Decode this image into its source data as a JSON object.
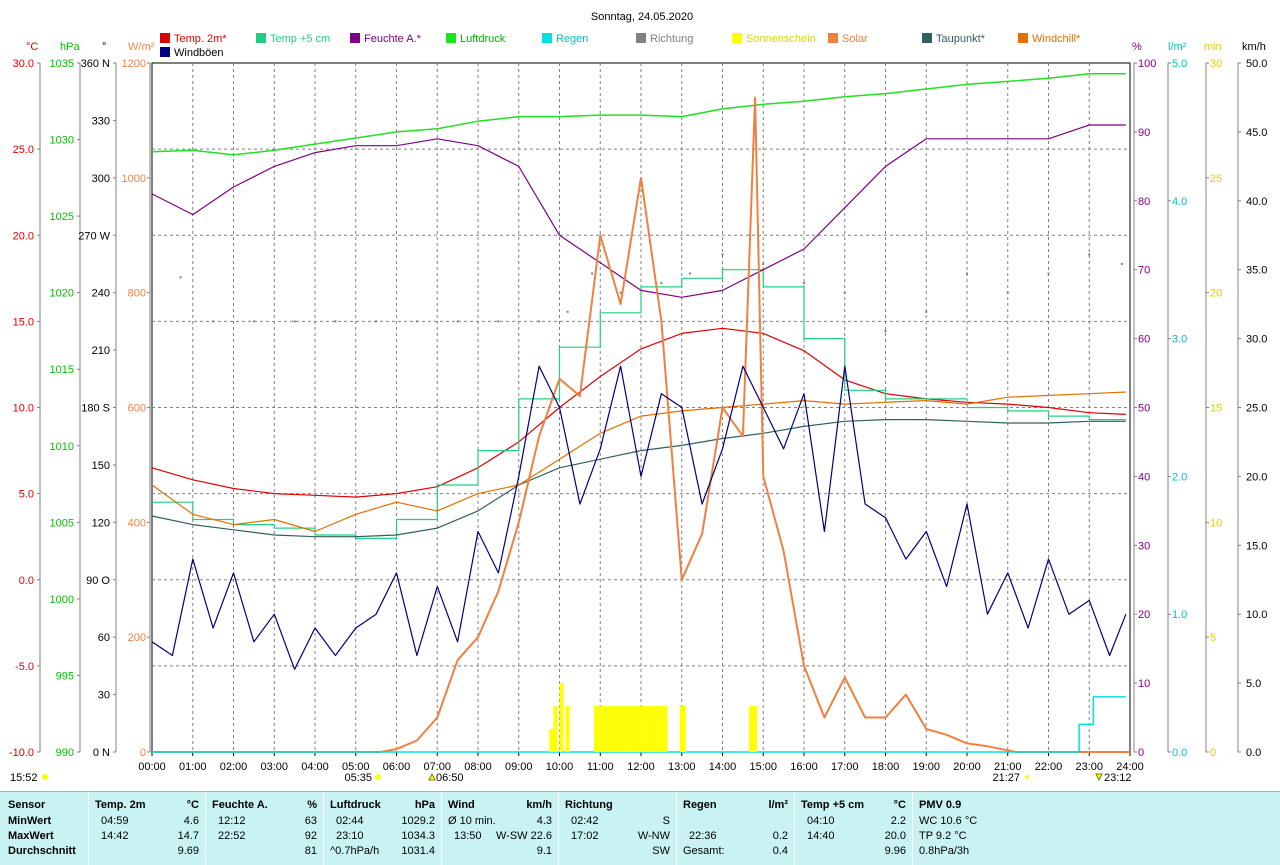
{
  "chart_data": {
    "type": "line",
    "title": "Sonntag, 24.05.2020",
    "x_ticks": [
      "00:00",
      "01:00",
      "02:00",
      "03:00",
      "04:00",
      "05:00",
      "06:00",
      "07:00",
      "08:00",
      "09:00",
      "10:00",
      "11:00",
      "12:00",
      "13:00",
      "14:00",
      "15:00",
      "16:00",
      "17:00",
      "18:00",
      "19:00",
      "20:00",
      "21:00",
      "22:00",
      "23:00",
      "24:00"
    ],
    "axes": {
      "temp": {
        "unit": "°C",
        "min": -10,
        "max": 30,
        "ticks": [
          "30.0",
          "25.0",
          "20.0",
          "15.0",
          "10.0",
          "5.0",
          "0.0",
          "-5.0",
          "-10.0"
        ],
        "color": "#e00000"
      },
      "press": {
        "unit": "hPa",
        "min": 990,
        "max": 1035,
        "ticks": [
          "1035",
          "1030",
          "1025",
          "1020",
          "1015",
          "1010",
          "1005",
          "1000",
          "995",
          "990"
        ],
        "color": "#00c000"
      },
      "dir": {
        "unit": "°",
        "min": 0,
        "max": 360,
        "ticks": [
          "360 N",
          "330",
          "300",
          "270 W",
          "240",
          "210",
          "180 S",
          "150",
          "120",
          "90 O",
          "60",
          "30",
          "0 N"
        ],
        "color": "#000000"
      },
      "solar": {
        "unit": "W/m²",
        "min": 0,
        "max": 1200,
        "ticks": [
          "1200",
          "1000",
          "800",
          "600",
          "400",
          "200",
          "0"
        ],
        "color": "#f08040"
      },
      "hum": {
        "unit": "%",
        "min": 0,
        "max": 100,
        "ticks": [
          "100",
          "90",
          "80",
          "70",
          "60",
          "50",
          "40",
          "30",
          "20",
          "10",
          "0"
        ],
        "color": "#800080"
      },
      "rain": {
        "unit": "l/m²",
        "min": 0,
        "max": 5,
        "ticks": [
          "5.0",
          "4.0",
          "3.0",
          "2.0",
          "1.0",
          "0.0"
        ],
        "color": "#00c0c0"
      },
      "sun": {
        "unit": "min",
        "min": 0,
        "max": 30,
        "ticks": [
          "30",
          "25",
          "20",
          "15",
          "10",
          "5",
          "0"
        ],
        "color": "#e0e000"
      },
      "wind": {
        "unit": "km/h",
        "min": 0,
        "max": 50,
        "ticks": [
          "50.0",
          "45.0",
          "40.0",
          "35.0",
          "30.0",
          "25.0",
          "20.0",
          "15.0",
          "10.0",
          "5.0",
          "0.0"
        ],
        "color": "#000000"
      }
    },
    "legend": [
      {
        "name": "Temp. 2m*",
        "color": "#e00000"
      },
      {
        "name": "Temp +5 cm",
        "color": "#20d080"
      },
      {
        "name": "Feuchte A.*",
        "color": "#800080"
      },
      {
        "name": "Luftdruck",
        "color": "#20e020"
      },
      {
        "name": "Regen",
        "color": "#00e0e0"
      },
      {
        "name": "Richtung",
        "color": "#808080"
      },
      {
        "name": "Sonnenschein",
        "color": "#ffff00"
      },
      {
        "name": "Solar",
        "color": "#f08040"
      },
      {
        "name": "Taupunkt*",
        "color": "#306060"
      },
      {
        "name": "Windchill*",
        "color": "#e07000"
      },
      {
        "name": "Windböen",
        "color": "#000080"
      }
    ],
    "series": [
      {
        "name": "Temp. 2m*",
        "axis": "temp",
        "x": [
          0,
          1,
          2,
          3,
          4,
          5,
          6,
          7,
          8,
          9,
          10,
          11,
          12,
          13,
          14,
          15,
          16,
          17,
          18,
          19,
          20,
          21,
          22,
          23,
          23.9
        ],
        "y": [
          6.5,
          5.8,
          5.3,
          5.0,
          4.9,
          4.8,
          5.0,
          5.4,
          6.5,
          8.0,
          10.0,
          11.8,
          13.4,
          14.3,
          14.6,
          14.3,
          13.3,
          11.6,
          10.8,
          10.5,
          10.3,
          10.2,
          10.0,
          9.7,
          9.6
        ]
      },
      {
        "name": "Temp +5 cm",
        "axis": "temp",
        "x": [
          0,
          1,
          2,
          3,
          4,
          5,
          6,
          7,
          8,
          9,
          10,
          11,
          12,
          13,
          14,
          15,
          16,
          17,
          18,
          19,
          20,
          21,
          22,
          23,
          23.9
        ],
        "y": [
          4.5,
          3.5,
          3.2,
          3.0,
          2.6,
          2.4,
          3.5,
          5.5,
          7.5,
          10.5,
          13.5,
          15.5,
          17.0,
          17.5,
          18.0,
          17.0,
          14.0,
          11.0,
          10.5,
          10.5,
          10.0,
          9.8,
          9.5,
          9.3,
          9.3
        ]
      },
      {
        "name": "Feuchte A.*",
        "axis": "hum",
        "x": [
          0,
          1,
          2,
          3,
          4,
          5,
          6,
          7,
          8,
          9,
          10,
          11,
          12,
          13,
          14,
          15,
          16,
          17,
          18,
          19,
          20,
          21,
          22,
          23,
          23.9
        ],
        "y": [
          81,
          78,
          82,
          85,
          87,
          88,
          88,
          89,
          88,
          85,
          75,
          71,
          67,
          66,
          67,
          70,
          73,
          79,
          85,
          89,
          89,
          89,
          89,
          91,
          91
        ]
      },
      {
        "name": "Luftdruck",
        "axis": "press",
        "x": [
          0,
          1,
          2,
          3,
          4,
          5,
          6,
          7,
          8,
          9,
          10,
          11,
          12,
          13,
          14,
          15,
          16,
          17,
          18,
          19,
          20,
          21,
          22,
          23,
          23.9
        ],
        "y": [
          1029.2,
          1029.3,
          1029.0,
          1029.3,
          1029.7,
          1030.1,
          1030.5,
          1030.7,
          1031.2,
          1031.5,
          1031.5,
          1031.6,
          1031.6,
          1031.5,
          1032.0,
          1032.3,
          1032.5,
          1032.8,
          1033.0,
          1033.3,
          1033.6,
          1033.8,
          1034.0,
          1034.3,
          1034.3
        ]
      },
      {
        "name": "Taupunkt*",
        "axis": "temp",
        "x": [
          0,
          1,
          2,
          3,
          4,
          5,
          6,
          7,
          8,
          9,
          10,
          11,
          12,
          13,
          14,
          15,
          16,
          17,
          18,
          19,
          20,
          21,
          22,
          23,
          23.9
        ],
        "y": [
          3.7,
          3.2,
          2.9,
          2.6,
          2.5,
          2.5,
          2.6,
          3.0,
          4.0,
          5.5,
          6.5,
          7.0,
          7.5,
          7.8,
          8.2,
          8.5,
          8.9,
          9.2,
          9.3,
          9.3,
          9.2,
          9.1,
          9.1,
          9.2,
          9.2
        ]
      },
      {
        "name": "Windchill*",
        "axis": "temp",
        "x": [
          0,
          1,
          2,
          3,
          4,
          5,
          6,
          7,
          8,
          9,
          10,
          11,
          12,
          13,
          14,
          15,
          16,
          17,
          18,
          19,
          20,
          21,
          22,
          23,
          23.9
        ],
        "y": [
          5.5,
          3.8,
          3.2,
          3.5,
          2.8,
          3.8,
          4.5,
          4.0,
          5.0,
          5.5,
          7.0,
          8.5,
          9.5,
          9.8,
          10.0,
          10.2,
          10.4,
          10.2,
          10.3,
          10.4,
          10.2,
          10.6,
          10.7,
          10.8,
          10.9
        ]
      },
      {
        "name": "Solar",
        "axis": "solar",
        "x": [
          0,
          5.6,
          6,
          6.5,
          7,
          7.5,
          8,
          8.5,
          9,
          9.5,
          10,
          10.5,
          11,
          11.5,
          12,
          12.5,
          13,
          13.5,
          14,
          14.5,
          14.8,
          15,
          15.5,
          16,
          16.5,
          17,
          17.5,
          18,
          18.5,
          19,
          19.5,
          20,
          20.5,
          21,
          21.2,
          24
        ],
        "y": [
          0,
          0,
          5,
          20,
          60,
          160,
          200,
          280,
          400,
          550,
          650,
          620,
          900,
          780,
          1000,
          750,
          300,
          380,
          600,
          550,
          1140,
          480,
          350,
          150,
          60,
          130,
          60,
          60,
          100,
          40,
          30,
          15,
          10,
          3,
          0,
          0
        ]
      },
      {
        "name": "Windböen",
        "axis": "wind",
        "x": [
          0,
          0.5,
          1,
          1.5,
          2,
          2.5,
          3,
          3.5,
          4,
          4.5,
          5,
          5.5,
          6,
          6.5,
          7,
          7.5,
          8,
          8.5,
          9,
          9.5,
          10,
          10.5,
          11,
          11.5,
          12,
          12.5,
          13,
          13.5,
          14,
          14.5,
          15,
          15.5,
          16,
          16.5,
          17,
          17.5,
          18,
          18.5,
          19,
          19.5,
          20,
          20.5,
          21,
          21.5,
          22,
          22.5,
          23,
          23.5,
          23.9
        ],
        "y": [
          8,
          7,
          14,
          9,
          13,
          8,
          10,
          6,
          9,
          7,
          9,
          10,
          13,
          7,
          12,
          8,
          16,
          13,
          20,
          28,
          25,
          18,
          22,
          28,
          20,
          26,
          25,
          18,
          22,
          28,
          25,
          22,
          26,
          16,
          28,
          18,
          17,
          14,
          16,
          12,
          18,
          10,
          13,
          9,
          14,
          10,
          11,
          7,
          10
        ]
      },
      {
        "name": "Regen",
        "axis": "rain",
        "x": [
          0,
          22.6,
          22.75,
          23.1,
          23.9
        ],
        "y": [
          0,
          0,
          0.2,
          0.4,
          0.4
        ]
      },
      {
        "name": "Richtung",
        "axis": "dir",
        "x": [
          0,
          0.7,
          1.5,
          2.5,
          3.5,
          4.5,
          5.5,
          6.5,
          7.5,
          8.5,
          9.5,
          10.2,
          10.8,
          11.5,
          12.5,
          13.2,
          14,
          15,
          16,
          17,
          18,
          19,
          20,
          21,
          22,
          23,
          23.8
        ],
        "y": [
          225,
          248,
          225,
          225,
          225,
          225,
          225,
          225,
          225,
          225,
          225,
          230,
          250,
          240,
          245,
          250,
          260,
          255,
          245,
          240,
          220,
          230,
          250,
          240,
          250,
          260,
          255
        ]
      },
      {
        "name": "Sonnenschein",
        "axis": "sun",
        "x": [
          9.8,
          9.9,
          10.05,
          10.2,
          10.9,
          11.0,
          11.1,
          11.2,
          11.3,
          11.4,
          11.5,
          11.6,
          11.7,
          11.8,
          11.9,
          12.0,
          12.1,
          12.2,
          12.3,
          12.4,
          12.5,
          12.6,
          13.0,
          13.05,
          14.7,
          14.8
        ],
        "y": [
          1,
          2,
          3,
          2,
          2,
          2,
          2,
          2,
          2,
          2,
          2,
          2,
          2,
          2,
          2,
          2,
          2,
          2,
          2,
          2,
          2,
          2,
          2,
          2,
          2,
          2
        ]
      }
    ],
    "markers": {
      "min_time": "15:52",
      "sunrise": "05:35",
      "sun_mark": "06:50",
      "sunset": "21:27",
      "max_time": "23:12"
    },
    "grid": true
  },
  "summary": {
    "col_sensor": {
      "h": "Sensor",
      "r1": "MinWert",
      "r2": "MaxWert",
      "r3": "Durchschnitt"
    },
    "col_temp": {
      "h": "Temp. 2m",
      "u": "°C",
      "r1t": "04:59",
      "r1v": "4.6",
      "r2t": "14:42",
      "r2v": "14.7",
      "r3v": "9.69"
    },
    "col_hum": {
      "h": "Feuchte A.",
      "u": "%",
      "r1t": "12:12",
      "r1v": "63",
      "r2t": "22:52",
      "r2v": "92",
      "r3v": "81"
    },
    "col_press": {
      "h": "Luftdruck",
      "u": "hPa",
      "r1t": "02:44",
      "r1v": "1029.2",
      "r2t": "23:10",
      "r2v": "1034.3",
      "r3t": "^0.7hPa/h",
      "r3v": "1031.4"
    },
    "col_wind": {
      "h": "Wind",
      "u": "km/h",
      "r1t": "Ø 10 min.",
      "r1v": "4.3",
      "r2t": "13:50",
      "r2d": "W-SW",
      "r2v": "22.6",
      "r3v": "9.1"
    },
    "col_dir": {
      "h": "Richtung",
      "r1t": "02:42",
      "r1v": "S",
      "r2t": "17:02",
      "r2v": "W-NW",
      "r3v": "SW"
    },
    "col_rain": {
      "h": "Regen",
      "u": "l/m²",
      "r2t": "22:36",
      "r2v": "0.2",
      "r3t": "Gesamt:",
      "r3v": "0.4"
    },
    "col_t5": {
      "h": "Temp +5 cm",
      "u": "°C",
      "r1t": "04:10",
      "r1v": "2.2",
      "r2t": "14:40",
      "r2v": "20.0",
      "r3v": "9.96"
    },
    "col_pmv": {
      "h": "PMV 0.9",
      "r1": "WC 10.6 °C",
      "r2": "TP 9.2 °C",
      "r3": "0.8hPa/3h"
    }
  }
}
